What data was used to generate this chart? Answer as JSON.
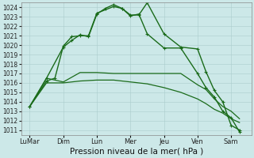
{
  "bg_color": "#cce8e8",
  "grid_color": "#aacccc",
  "line_color": "#1a6b1a",
  "marker_color": "#1a6b1a",
  "xlabel": "Pression niveau de la mer( hPa )",
  "xlabel_fontsize": 7.5,
  "ylim": [
    1010.5,
    1024.5
  ],
  "yticks": [
    1011,
    1012,
    1013,
    1014,
    1015,
    1016,
    1017,
    1018,
    1019,
    1020,
    1021,
    1022,
    1023,
    1024
  ],
  "ytick_fontsize": 5.5,
  "xtick_labels": [
    "LuMar",
    "Dim",
    "Lun",
    "Mer",
    "Jeu",
    "Ven",
    "Sam"
  ],
  "xtick_positions": [
    0,
    2,
    4,
    6,
    8,
    10,
    12
  ],
  "xtick_fontsize": 6,
  "series": [
    {
      "x": [
        0,
        1,
        2,
        3,
        4,
        5,
        6,
        7,
        8,
        9,
        10,
        10.5,
        11,
        11.5,
        12,
        12.5
      ],
      "y": [
        1013.5,
        1016.5,
        1016.1,
        1017.1,
        1017.1,
        1017.0,
        1017.0,
        1017.0,
        1017.0,
        1017.0,
        1015.8,
        1015.3,
        1014.3,
        1013.5,
        1013.0,
        1012.2
      ],
      "marker": null,
      "linewidth": 0.9
    },
    {
      "x": [
        0,
        1,
        2,
        3,
        4,
        5,
        6,
        7,
        8,
        9,
        10,
        10.5,
        11,
        11.5,
        12,
        12.5
      ],
      "y": [
        1013.5,
        1016.0,
        1016.0,
        1016.2,
        1016.3,
        1016.3,
        1016.1,
        1015.9,
        1015.5,
        1015.0,
        1014.3,
        1013.8,
        1013.2,
        1012.8,
        1012.2,
        1011.8
      ],
      "marker": null,
      "linewidth": 0.9
    },
    {
      "x": [
        0,
        1,
        2,
        2.5,
        3,
        3.5,
        4,
        4.5,
        5,
        5.5,
        6,
        6.5,
        7,
        8,
        9,
        10,
        10.5,
        11,
        11.5,
        12,
        12.5
      ],
      "y": [
        1013.5,
        1016.5,
        1019.8,
        1020.5,
        1021.1,
        1020.9,
        1023.3,
        1023.9,
        1024.3,
        1023.9,
        1023.2,
        1023.2,
        1024.5,
        1021.2,
        1019.8,
        1019.6,
        1017.2,
        1015.2,
        1014.0,
        1011.5,
        1011.0
      ],
      "marker": "+",
      "linewidth": 1.0
    },
    {
      "x": [
        0,
        1,
        1.5,
        2,
        2.5,
        3,
        3.5,
        4,
        5,
        5.5,
        6,
        6.5,
        7,
        8,
        9,
        10,
        10.5,
        11,
        11.5,
        12,
        12.5
      ],
      "y": [
        1013.5,
        1016.2,
        1016.5,
        1019.9,
        1020.9,
        1021.0,
        1021.0,
        1023.4,
        1024.1,
        1023.9,
        1023.1,
        1023.3,
        1021.2,
        1019.7,
        1019.7,
        1017.0,
        1015.5,
        1014.5,
        1013.0,
        1012.3,
        1010.8
      ],
      "marker": "+",
      "linewidth": 1.0
    }
  ]
}
